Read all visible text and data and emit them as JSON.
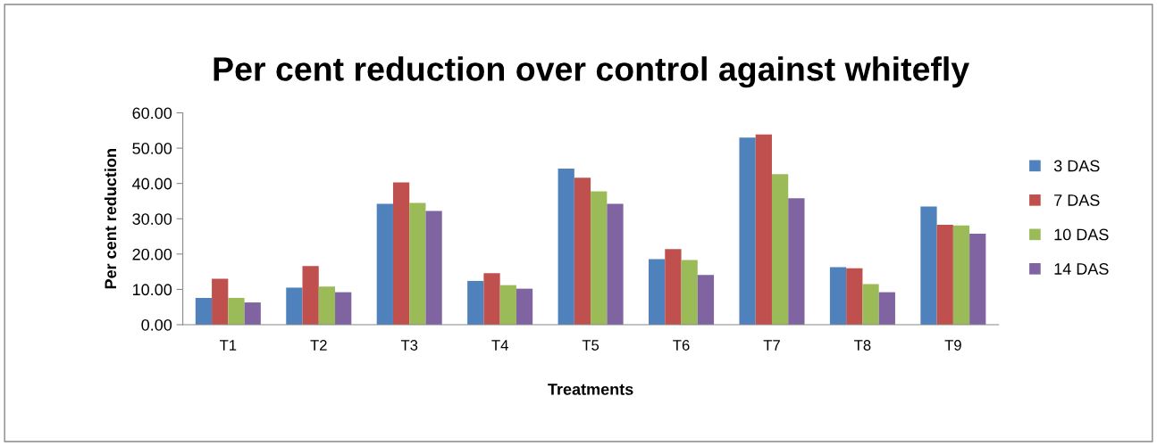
{
  "chart_data": {
    "type": "bar",
    "title": "Per cent reduction over control against whitefly",
    "xlabel": "Treatments",
    "ylabel": "Per cent reduction",
    "categories": [
      "T1",
      "T2",
      "T3",
      "T4",
      "T5",
      "T6",
      "T7",
      "T8",
      "T9"
    ],
    "series": [
      {
        "name": "3 DAS",
        "color": "#4f81bd",
        "values": [
          7.6,
          10.5,
          34.2,
          12.4,
          44.2,
          18.6,
          53.0,
          16.3,
          33.5
        ]
      },
      {
        "name": "7 DAS",
        "color": "#c0504d",
        "values": [
          13.0,
          16.6,
          40.3,
          14.6,
          41.6,
          21.4,
          53.9,
          16.0,
          28.3
        ]
      },
      {
        "name": "10 DAS",
        "color": "#9bbb59",
        "values": [
          7.6,
          10.8,
          34.5,
          11.2,
          37.8,
          18.3,
          42.6,
          11.5,
          28.1
        ]
      },
      {
        "name": "14 DAS",
        "color": "#8064a2",
        "values": [
          6.3,
          9.2,
          32.2,
          10.2,
          34.2,
          14.1,
          35.8,
          9.2,
          25.8
        ]
      }
    ],
    "ylim": [
      0,
      60
    ],
    "yticks": [
      {
        "value": 0,
        "label": "0.00"
      },
      {
        "value": 10,
        "label": "10.00"
      },
      {
        "value": 20,
        "label": "20.00"
      },
      {
        "value": 30,
        "label": "30.00"
      },
      {
        "value": 40,
        "label": "40.00"
      },
      {
        "value": 50,
        "label": "50.00"
      },
      {
        "value": 60,
        "label": "60.00"
      }
    ],
    "grid": false,
    "legend": "right"
  }
}
